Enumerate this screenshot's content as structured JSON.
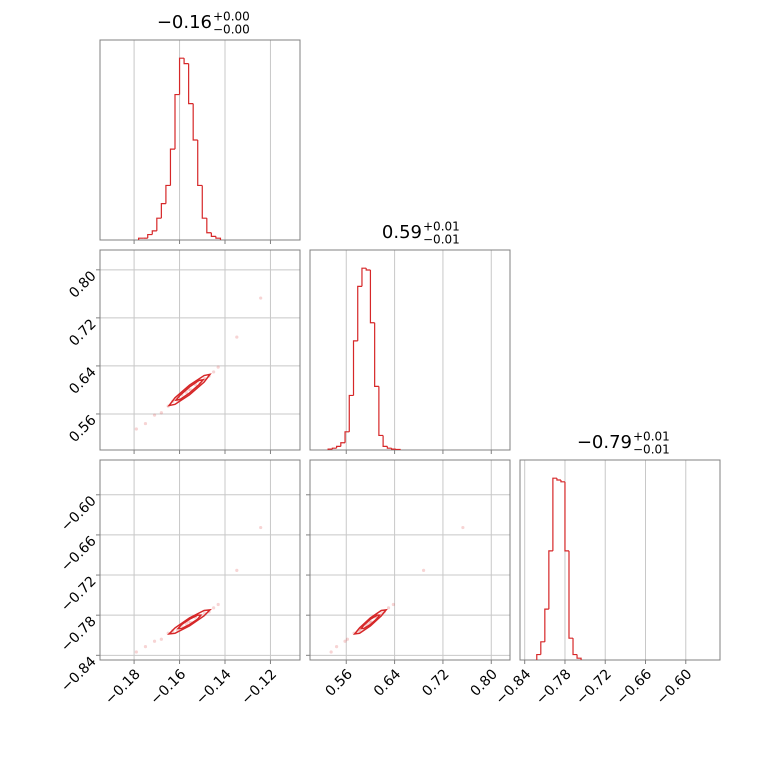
{
  "chart_data": [
    {
      "type": "histogram",
      "title": "−0.16",
      "title_upper": "+0.00",
      "title_lower": "−0.00",
      "color": "#d62728",
      "bins": [
        -0.178,
        -0.176,
        -0.174,
        -0.172,
        -0.17,
        -0.168,
        -0.166,
        -0.164,
        -0.162,
        -0.16,
        -0.158,
        -0.156,
        -0.154,
        -0.152,
        -0.15,
        -0.148,
        -0.146,
        -0.144,
        -0.142
      ],
      "counts": [
        0.01,
        0.01,
        0.03,
        0.05,
        0.12,
        0.2,
        0.3,
        0.5,
        0.8,
        1.0,
        0.97,
        0.75,
        0.55,
        0.3,
        0.12,
        0.04,
        0.02,
        0.01
      ],
      "xlim": [
        -0.195,
        -0.107
      ],
      "ylim": [
        0,
        1.1
      ],
      "xticks": [
        -0.18,
        -0.16,
        -0.14,
        -0.12
      ],
      "grid": true,
      "xtick_labels": false
    },
    {
      "type": "scatter",
      "color": "#d62728",
      "x": [
        -0.179,
        -0.175,
        -0.171,
        -0.168,
        -0.165,
        -0.163,
        -0.161,
        -0.159,
        -0.157,
        -0.156,
        -0.155,
        -0.153,
        -0.151,
        -0.149,
        -0.147,
        -0.145,
        -0.143,
        -0.1348,
        -0.1243
      ],
      "y": [
        0.535,
        0.544,
        0.558,
        0.562,
        0.573,
        0.581,
        0.583,
        0.592,
        0.596,
        0.601,
        0.6,
        0.609,
        0.611,
        0.619,
        0.623,
        0.63,
        0.638,
        0.688,
        0.753
      ],
      "contours": [
        {
          "x": [
            -0.1466,
            -0.1492,
            -0.1556,
            -0.162,
            -0.1646,
            -0.162,
            -0.1556,
            -0.1492
          ],
          "y": [
            0.626,
            0.624,
            0.608,
            0.587,
            0.574,
            0.576,
            0.592,
            0.613
          ]
        },
        {
          "x": [
            -0.1496,
            -0.1514,
            -0.1556,
            -0.1598,
            -0.1616,
            -0.1598,
            -0.1556,
            -0.1514
          ],
          "y": [
            0.617,
            0.616,
            0.605,
            0.591,
            0.583,
            0.584,
            0.595,
            0.609
          ]
        }
      ],
      "xlim": [
        -0.195,
        -0.107
      ],
      "ylim": [
        0.5,
        0.833
      ],
      "xticks": [
        -0.18,
        -0.16,
        -0.14,
        -0.12
      ],
      "yticks": [
        0.56,
        0.64,
        0.72,
        {
          "value": 0.8,
          "label": "0.80"
        }
      ],
      "grid": true,
      "xtick_labels": false,
      "ytick_labels": true
    },
    {
      "type": "histogram",
      "title": "0.59",
      "title_upper": "+0.01",
      "title_lower": "−0.01",
      "color": "#d62728",
      "bins": [
        0.53,
        0.537,
        0.544,
        0.551,
        0.558,
        0.565,
        0.572,
        0.579,
        0.586,
        0.593,
        0.6,
        0.607,
        0.614,
        0.621,
        0.628,
        0.635,
        0.642,
        0.649
      ],
      "counts": [
        0.005,
        0.01,
        0.02,
        0.04,
        0.1,
        0.3,
        0.6,
        0.9,
        1.0,
        0.99,
        0.7,
        0.35,
        0.08,
        0.02,
        0.01,
        0.005,
        0.003
      ],
      "xlim": [
        0.5,
        0.831
      ],
      "ylim": [
        0,
        1.1
      ],
      "xticks": [
        0.56,
        0.64,
        0.72,
        0.8
      ],
      "grid": true,
      "xtick_labels": false
    },
    {
      "type": "scatter",
      "color": "#d62728",
      "x": [
        -0.179,
        -0.175,
        -0.171,
        -0.168,
        -0.165,
        -0.163,
        -0.161,
        -0.159,
        -0.157,
        -0.156,
        -0.155,
        -0.153,
        -0.151,
        -0.149,
        -0.147,
        -0.145,
        -0.143,
        -0.1348,
        -0.1243
      ],
      "y": [
        -0.835,
        -0.827,
        -0.819,
        -0.816,
        -0.807,
        -0.803,
        -0.802,
        -0.795,
        -0.793,
        -0.79,
        -0.791,
        -0.783,
        -0.782,
        -0.777,
        -0.775,
        -0.769,
        -0.764,
        -0.713,
        -0.649
      ],
      "contours": [
        {
          "x": [
            -0.1466,
            -0.1492,
            -0.1556,
            -0.162,
            -0.1646,
            -0.162,
            -0.1556,
            -0.1492
          ],
          "y": [
            -0.772,
            -0.773,
            -0.784,
            -0.799,
            -0.808,
            -0.807,
            -0.796,
            -0.781
          ]
        },
        {
          "x": [
            -0.1506,
            -0.1521,
            -0.1556,
            -0.1591,
            -0.1606,
            -0.1591,
            -0.1556,
            -0.1521
          ],
          "y": [
            -0.78,
            -0.78,
            -0.786,
            -0.794,
            -0.8,
            -0.8,
            -0.794,
            -0.786
          ]
        }
      ],
      "xlim": [
        -0.195,
        -0.107
      ],
      "ylim": [
        -0.847,
        -0.548
      ],
      "xticks": [
        {
          "value": -0.18,
          "label": "−0.18"
        },
        {
          "value": -0.16,
          "label": "−0.16"
        },
        {
          "value": -0.14,
          "label": "−0.14"
        },
        {
          "value": -0.12,
          "label": "−0.12"
        }
      ],
      "yticks": [
        {
          "value": -0.84,
          "label": "−0.84"
        },
        {
          "value": -0.78,
          "label": "−0.78"
        },
        {
          "value": -0.72,
          "label": "−0.72"
        },
        {
          "value": -0.66,
          "label": "−0.66"
        },
        {
          "value": -0.6,
          "label": "−0.60"
        }
      ],
      "grid": true,
      "xtick_labels": true,
      "ytick_labels": true
    },
    {
      "type": "scatter",
      "color": "#d62728",
      "x": [
        0.535,
        0.544,
        0.558,
        0.562,
        0.573,
        0.581,
        0.583,
        0.592,
        0.596,
        0.601,
        0.6,
        0.609,
        0.611,
        0.619,
        0.623,
        0.63,
        0.638,
        0.688,
        0.753
      ],
      "y": [
        -0.835,
        -0.827,
        -0.819,
        -0.816,
        -0.807,
        -0.803,
        -0.802,
        -0.795,
        -0.793,
        -0.79,
        -0.791,
        -0.783,
        -0.782,
        -0.777,
        -0.775,
        -0.769,
        -0.764,
        -0.713,
        -0.649
      ],
      "contours": [
        {
          "x": [
            0.626,
            0.618,
            0.6,
            0.582,
            0.574,
            0.582,
            0.6,
            0.618
          ],
          "y": [
            -0.772,
            -0.773,
            -0.784,
            -0.799,
            -0.808,
            -0.807,
            -0.796,
            -0.781
          ]
        },
        {
          "x": [
            0.615,
            0.611,
            0.6,
            0.589,
            0.585,
            0.589,
            0.6,
            0.611
          ],
          "y": [
            -0.78,
            -0.78,
            -0.786,
            -0.795,
            -0.8,
            -0.8,
            -0.794,
            -0.785
          ]
        }
      ],
      "xlim": [
        0.5,
        0.831
      ],
      "ylim": [
        -0.847,
        -0.548
      ],
      "xticks": [
        0.56,
        0.64,
        0.72,
        {
          "value": 0.8,
          "label": "0.80"
        }
      ],
      "yticks": [
        -0.84,
        -0.78,
        -0.72,
        -0.66,
        -0.6
      ],
      "grid": true,
      "xtick_labels": true,
      "ytick_labels": false
    },
    {
      "type": "histogram",
      "title": "−0.79",
      "title_upper": "+0.01",
      "title_lower": "−0.01",
      "color": "#d62728",
      "bins": [
        -0.822,
        -0.816,
        -0.81,
        -0.804,
        -0.798,
        -0.792,
        -0.786,
        -0.78,
        -0.774,
        -0.768,
        -0.762,
        -0.756
      ],
      "counts": [
        0.03,
        0.1,
        0.28,
        0.6,
        1.0,
        0.99,
        0.98,
        0.6,
        0.12,
        0.03,
        0.01
      ],
      "xlim": [
        -0.847,
        -0.549
      ],
      "ylim": [
        0,
        1.1
      ],
      "xticks": [
        {
          "value": -0.84,
          "label": "−0.84"
        },
        {
          "value": -0.78,
          "label": "−0.78"
        },
        {
          "value": -0.72,
          "label": "−0.72"
        },
        {
          "value": -0.66,
          "label": "−0.66"
        },
        {
          "value": -0.6,
          "label": "−0.60"
        }
      ],
      "grid": true,
      "xtick_labels": true
    }
  ]
}
